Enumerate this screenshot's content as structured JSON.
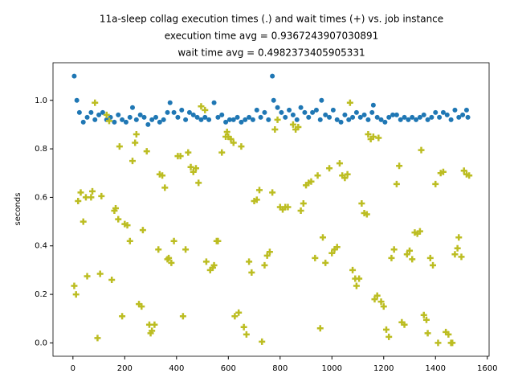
{
  "chart_data": {
    "type": "scatter",
    "title": [
      "11a-sleep collag execution times (.) and wait times (+) vs. job instance",
      "execution time avg = 0.9367243907030891",
      "wait time avg = 0.4982373405905331"
    ],
    "y_label": "seconds",
    "xlim": [
      -77,
      1607
    ],
    "ylim": [
      -0.055,
      1.155
    ],
    "xticks": [
      0,
      200,
      400,
      600,
      800,
      1000,
      1200,
      1400,
      1600
    ],
    "yticks": [
      {
        "value": 0,
        "label": "0.0"
      },
      0.2,
      0.4,
      0.6,
      0.8,
      {
        "value": 1,
        "label": "1.0"
      }
    ],
    "series": [
      {
        "marker": "o",
        "color": "#1f77b4",
        "x": [
          5,
          15,
          25,
          40,
          55,
          70,
          85,
          100,
          115,
          130,
          145,
          160,
          175,
          190,
          205,
          220,
          230,
          245,
          260,
          275,
          290,
          305,
          320,
          335,
          350,
          365,
          375,
          390,
          405,
          420,
          435,
          450,
          465,
          480,
          495,
          510,
          525,
          545,
          560,
          575,
          590,
          605,
          620,
          635,
          650,
          665,
          680,
          695,
          710,
          725,
          740,
          755,
          770,
          775,
          790,
          805,
          820,
          835,
          850,
          865,
          880,
          895,
          910,
          925,
          940,
          955,
          960,
          975,
          990,
          1005,
          1020,
          1035,
          1050,
          1065,
          1080,
          1095,
          1110,
          1125,
          1140,
          1155,
          1160,
          1175,
          1190,
          1205,
          1220,
          1235,
          1250,
          1265,
          1280,
          1295,
          1310,
          1325,
          1340,
          1355,
          1370,
          1385,
          1400,
          1415,
          1430,
          1445,
          1460,
          1475,
          1490,
          1505,
          1520,
          1525
        ],
        "values": [
          1.1,
          1.0,
          0.95,
          0.91,
          0.93,
          0.95,
          0.92,
          0.94,
          0.95,
          0.92,
          0.93,
          0.91,
          0.94,
          0.92,
          0.91,
          0.93,
          0.97,
          0.92,
          0.94,
          0.93,
          0.9,
          0.92,
          0.93,
          0.91,
          0.92,
          0.95,
          0.99,
          0.95,
          0.93,
          0.96,
          0.92,
          0.95,
          0.94,
          0.93,
          0.92,
          0.93,
          0.92,
          0.99,
          0.93,
          0.94,
          0.91,
          0.92,
          0.92,
          0.93,
          0.91,
          0.92,
          0.93,
          0.92,
          0.96,
          0.93,
          0.95,
          0.92,
          1.1,
          1.0,
          0.97,
          0.95,
          0.93,
          0.96,
          0.94,
          0.92,
          0.97,
          0.95,
          0.93,
          0.95,
          0.96,
          0.92,
          1.0,
          0.94,
          0.93,
          0.96,
          0.92,
          0.91,
          0.94,
          0.92,
          0.93,
          0.95,
          0.93,
          0.94,
          0.92,
          0.95,
          0.98,
          0.93,
          0.92,
          0.91,
          0.93,
          0.94,
          0.94,
          0.92,
          0.93,
          0.92,
          0.93,
          0.92,
          0.93,
          0.94,
          0.92,
          0.93,
          0.95,
          0.93,
          0.95,
          0.94,
          0.92,
          0.96,
          0.93,
          0.94,
          0.96,
          0.93
        ]
      },
      {
        "marker": "+",
        "color": "#bcbd22",
        "x": [
          5,
          12,
          20,
          30,
          40,
          50,
          55,
          70,
          75,
          85,
          95,
          105,
          110,
          130,
          140,
          150,
          160,
          165,
          175,
          180,
          190,
          200,
          210,
          220,
          230,
          240,
          245,
          255,
          265,
          270,
          285,
          295,
          300,
          305,
          315,
          330,
          335,
          345,
          355,
          365,
          370,
          380,
          390,
          405,
          415,
          425,
          435,
          445,
          455,
          465,
          475,
          485,
          495,
          510,
          515,
          530,
          540,
          545,
          555,
          560,
          575,
          590,
          595,
          600,
          610,
          620,
          625,
          640,
          650,
          660,
          670,
          680,
          690,
          700,
          710,
          720,
          730,
          740,
          750,
          760,
          770,
          780,
          790,
          800,
          810,
          820,
          830,
          850,
          860,
          870,
          880,
          890,
          900,
          910,
          920,
          935,
          945,
          955,
          965,
          975,
          990,
          1000,
          1010,
          1020,
          1030,
          1040,
          1050,
          1060,
          1070,
          1080,
          1090,
          1095,
          1105,
          1115,
          1125,
          1135,
          1140,
          1150,
          1160,
          1165,
          1175,
          1180,
          1190,
          1200,
          1210,
          1220,
          1230,
          1240,
          1250,
          1260,
          1270,
          1280,
          1290,
          1300,
          1310,
          1320,
          1330,
          1340,
          1345,
          1355,
          1365,
          1370,
          1380,
          1390,
          1400,
          1410,
          1420,
          1430,
          1440,
          1450,
          1460,
          1465,
          1475,
          1485,
          1490,
          1500,
          1510,
          1520,
          1530
        ],
        "values": [
          0.235,
          0.2,
          0.585,
          0.62,
          0.5,
          0.6,
          0.275,
          0.6,
          0.625,
          0.99,
          0.02,
          0.285,
          0.605,
          0.94,
          0.915,
          0.26,
          0.545,
          0.555,
          0.51,
          0.81,
          0.11,
          0.49,
          0.485,
          0.42,
          0.75,
          0.825,
          0.86,
          0.16,
          0.15,
          0.465,
          0.79,
          0.075,
          0.04,
          0.05,
          0.075,
          0.385,
          0.695,
          0.69,
          0.64,
          0.345,
          0.35,
          0.33,
          0.42,
          0.77,
          0.77,
          0.11,
          0.385,
          0.785,
          0.725,
          0.705,
          0.72,
          0.66,
          0.975,
          0.96,
          0.335,
          0.3,
          0.31,
          0.32,
          0.42,
          0.42,
          0.785,
          0.85,
          0.87,
          0.85,
          0.84,
          0.825,
          0.11,
          0.125,
          0.81,
          0.065,
          0.035,
          0.335,
          0.29,
          0.585,
          0.59,
          0.63,
          0.005,
          0.32,
          0.36,
          0.375,
          0.62,
          0.88,
          0.92,
          0.56,
          0.55,
          0.56,
          0.56,
          0.9,
          0.88,
          0.89,
          0.545,
          0.575,
          0.65,
          0.66,
          0.665,
          0.35,
          0.69,
          0.06,
          0.435,
          0.33,
          0.72,
          0.37,
          0.385,
          0.395,
          0.74,
          0.69,
          0.68,
          0.695,
          0.99,
          0.3,
          0.265,
          0.235,
          0.265,
          0.575,
          0.535,
          0.53,
          0.86,
          0.84,
          0.85,
          0.18,
          0.195,
          0.845,
          0.17,
          0.15,
          0.055,
          0.025,
          0.35,
          0.385,
          0.655,
          0.73,
          0.085,
          0.075,
          0.365,
          0.38,
          0.345,
          0.455,
          0.45,
          0.46,
          0.795,
          0.115,
          0.095,
          0.04,
          0.35,
          0.32,
          0.655,
          0.0,
          0.7,
          0.705,
          0.045,
          0.035,
          0.0,
          0.0,
          0.365,
          0.39,
          0.435,
          0.355,
          0.71,
          0.695,
          0.69
        ]
      }
    ]
  }
}
